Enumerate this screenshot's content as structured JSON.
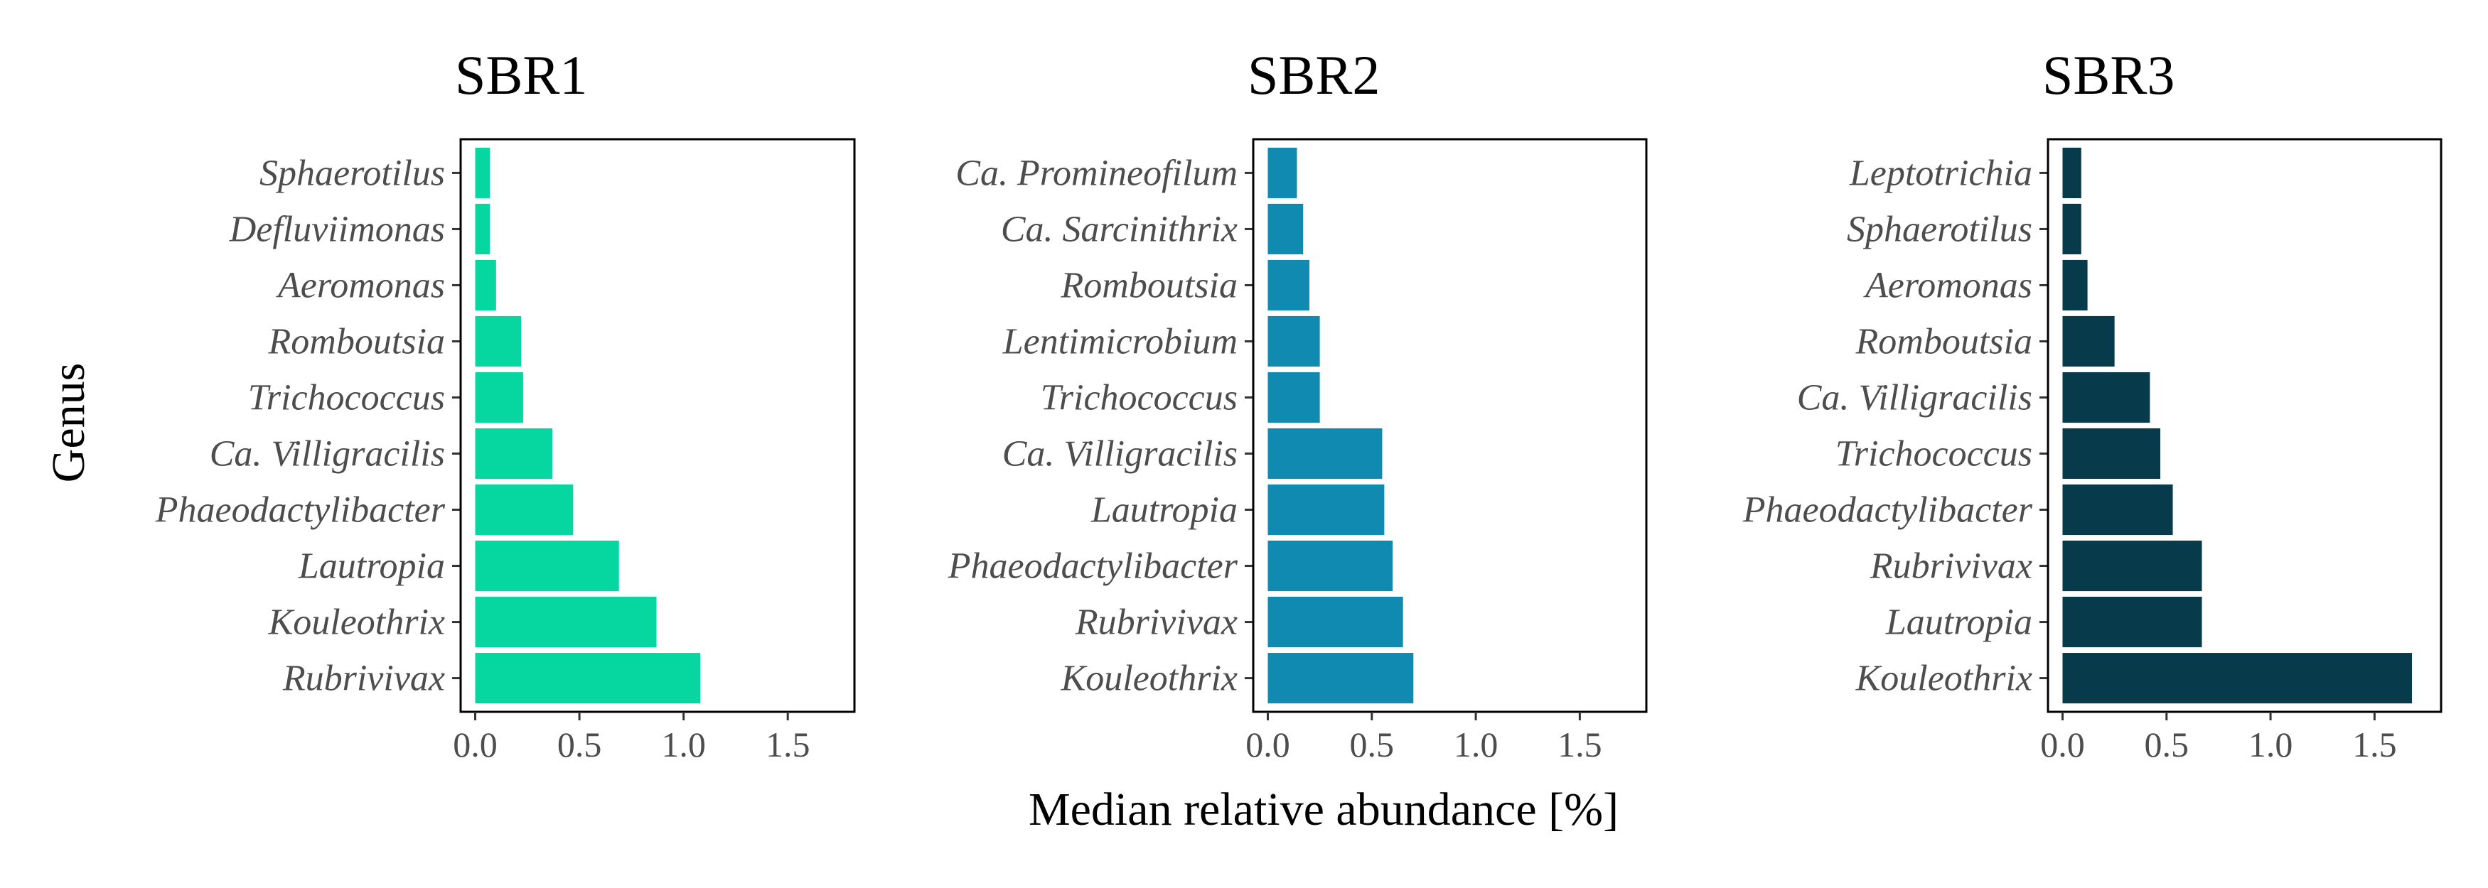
{
  "chart_data": {
    "type": "bar",
    "orientation": "horizontal",
    "ylabel": "Genus",
    "xlabel": "Median relative abundance [%]",
    "xlim": [
      0,
      1.75
    ],
    "xticks": [
      "0.0",
      "0.5",
      "1.0",
      "1.5"
    ],
    "xtick_values": [
      0,
      0.5,
      1.0,
      1.5
    ],
    "grid": false,
    "panels": [
      {
        "title": "SBR1",
        "color": "#06d6a0",
        "categories": [
          "Sphaerotilus",
          "Defluviimonas",
          "Aeromonas",
          "Romboutsia",
          "Trichococcus",
          "Ca. Villigracilis",
          "Phaeodactylibacter",
          "Lautropia",
          "Kouleothrix",
          "Rubrivivax"
        ],
        "values": [
          0.07,
          0.07,
          0.1,
          0.22,
          0.23,
          0.37,
          0.47,
          0.69,
          0.87,
          1.08
        ]
      },
      {
        "title": "SBR2",
        "color": "#118ab2",
        "categories": [
          "Ca. Promineofilum",
          "Ca. Sarcinithrix",
          "Romboutsia",
          "Lentimicrobium",
          "Trichococcus",
          "Ca. Villigracilis",
          "Lautropia",
          "Phaeodactylibacter",
          "Rubrivivax",
          "Kouleothrix"
        ],
        "values": [
          0.14,
          0.17,
          0.2,
          0.25,
          0.25,
          0.55,
          0.56,
          0.6,
          0.65,
          0.7
        ]
      },
      {
        "title": "SBR3",
        "color": "#073b4c",
        "categories": [
          "Leptotrichia",
          "Sphaerotilus",
          "Aeromonas",
          "Romboutsia",
          "Ca. Villigracilis",
          "Trichococcus",
          "Phaeodactylibacter",
          "Rubrivivax",
          "Lautropia",
          "Kouleothrix"
        ],
        "values": [
          0.09,
          0.09,
          0.12,
          0.25,
          0.42,
          0.47,
          0.53,
          0.67,
          0.67,
          1.68
        ]
      }
    ]
  }
}
